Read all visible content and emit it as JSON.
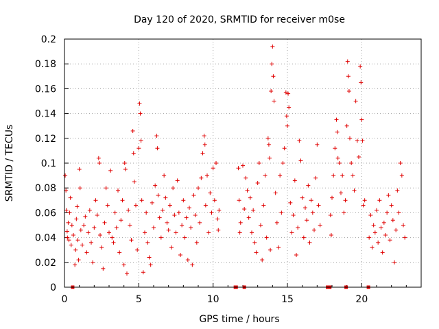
{
  "chart_data": {
    "type": "scatter",
    "title": "Day 120 of 2020, SRMTID for receiver m0se",
    "xlabel": "GPS time / hours",
    "ylabel": "SRMTID / TECUs",
    "xlim": [
      0,
      24
    ],
    "ylim": [
      0,
      0.2
    ],
    "grid": true,
    "marker": "plus",
    "colors": {
      "series": "#e00000",
      "grid": "#a0a0a0",
      "axis": "#000000"
    },
    "x_ticks": [
      {
        "value": 0,
        "label": "0"
      },
      {
        "value": 5,
        "label": "5"
      },
      {
        "value": 10,
        "label": "10"
      },
      {
        "value": 15,
        "label": "15"
      },
      {
        "value": 20,
        "label": "20"
      }
    ],
    "y_ticks": [
      {
        "value": 0,
        "label": "0"
      },
      {
        "value": 0.02,
        "label": "0.02"
      },
      {
        "value": 0.04,
        "label": "0.04"
      },
      {
        "value": 0.06,
        "label": "0.06"
      },
      {
        "value": 0.08,
        "label": "0.08"
      },
      {
        "value": 0.1,
        "label": "0.1"
      },
      {
        "value": 0.12,
        "label": "0.12"
      },
      {
        "value": 0.14,
        "label": "0.14"
      },
      {
        "value": 0.16,
        "label": "0.16"
      },
      {
        "value": 0.18,
        "label": "0.18"
      },
      {
        "value": 0.2,
        "label": "0.2"
      }
    ],
    "series": [
      {
        "name": "SRMTID",
        "points": [
          [
            0.05,
            0.09
          ],
          [
            0.1,
            0.078
          ],
          [
            0.12,
            0.062
          ],
          [
            0.18,
            0.045
          ],
          [
            0.2,
            0.04
          ],
          [
            0.25,
            0.052
          ],
          [
            0.3,
            0.038
          ],
          [
            0.35,
            0.06
          ],
          [
            0.4,
            0.072
          ],
          [
            0.45,
            0.034
          ],
          [
            0.5,
            0.05
          ],
          [
            0.6,
            0.042
          ],
          [
            0.7,
            0.018
          ],
          [
            0.75,
            0.03
          ],
          [
            0.8,
            0.055
          ],
          [
            0.85,
            0.065
          ],
          [
            0.9,
            0.038
          ],
          [
            0.95,
            0.022
          ],
          [
            1.0,
            0.095
          ],
          [
            1.05,
            0.08
          ],
          [
            1.1,
            0.046
          ],
          [
            1.2,
            0.034
          ],
          [
            1.3,
            0.05
          ],
          [
            1.4,
            0.057
          ],
          [
            1.5,
            0.028
          ],
          [
            1.6,
            0.044
          ],
          [
            1.7,
            0.062
          ],
          [
            1.8,
            0.036
          ],
          [
            1.9,
            0.02
          ],
          [
            2.0,
            0.048
          ],
          [
            2.1,
            0.07
          ],
          [
            2.2,
            0.058
          ],
          [
            2.3,
            0.104
          ],
          [
            2.35,
            0.1
          ],
          [
            2.4,
            0.042
          ],
          [
            2.5,
            0.032
          ],
          [
            2.6,
            0.015
          ],
          [
            2.7,
            0.052
          ],
          [
            2.8,
            0.08
          ],
          [
            2.9,
            0.066
          ],
          [
            3.0,
            0.044
          ],
          [
            3.1,
            0.094
          ],
          [
            3.2,
            0.04
          ],
          [
            3.3,
            0.036
          ],
          [
            3.4,
            0.06
          ],
          [
            3.5,
            0.048
          ],
          [
            3.6,
            0.078
          ],
          [
            3.7,
            0.028
          ],
          [
            3.8,
            0.054
          ],
          [
            3.9,
            0.07
          ],
          [
            4.0,
            0.018
          ],
          [
            4.05,
            0.1
          ],
          [
            4.1,
            0.095
          ],
          [
            4.2,
            0.011
          ],
          [
            4.3,
            0.062
          ],
          [
            4.4,
            0.05
          ],
          [
            4.5,
            0.038
          ],
          [
            4.6,
            0.126
          ],
          [
            4.65,
            0.108
          ],
          [
            4.7,
            0.085
          ],
          [
            4.8,
            0.066
          ],
          [
            4.9,
            0.03
          ],
          [
            5.0,
            0.112
          ],
          [
            5.05,
            0.148
          ],
          [
            5.1,
            0.14
          ],
          [
            5.15,
            0.118
          ],
          [
            5.2,
            0.07
          ],
          [
            5.3,
            0.012
          ],
          [
            5.4,
            0.044
          ],
          [
            5.5,
            0.06
          ],
          [
            5.6,
            0.036
          ],
          [
            5.7,
            0.024
          ],
          [
            5.8,
            0.018
          ],
          [
            5.9,
            0.068
          ],
          [
            6.0,
            0.048
          ],
          [
            6.1,
            0.082
          ],
          [
            6.2,
            0.122
          ],
          [
            6.25,
            0.112
          ],
          [
            6.3,
            0.074
          ],
          [
            6.4,
            0.056
          ],
          [
            6.5,
            0.04
          ],
          [
            6.6,
            0.062
          ],
          [
            6.7,
            0.09
          ],
          [
            6.8,
            0.072
          ],
          [
            6.9,
            0.052
          ],
          [
            7.0,
            0.046
          ],
          [
            7.1,
            0.066
          ],
          [
            7.2,
            0.032
          ],
          [
            7.3,
            0.08
          ],
          [
            7.4,
            0.058
          ],
          [
            7.5,
            0.044
          ],
          [
            7.6,
            0.086
          ],
          [
            7.7,
            0.06
          ],
          [
            7.8,
            0.026
          ],
          [
            7.9,
            0.05
          ],
          [
            8.0,
            0.07
          ],
          [
            8.1,
            0.04
          ],
          [
            8.2,
            0.056
          ],
          [
            8.3,
            0.022
          ],
          [
            8.4,
            0.064
          ],
          [
            8.5,
            0.048
          ],
          [
            8.6,
            0.018
          ],
          [
            8.7,
            0.074
          ],
          [
            8.8,
            0.058
          ],
          [
            8.9,
            0.036
          ],
          [
            9.0,
            0.08
          ],
          [
            9.1,
            0.052
          ],
          [
            9.2,
            0.088
          ],
          [
            9.3,
            0.108
          ],
          [
            9.4,
            0.122
          ],
          [
            9.45,
            0.115
          ],
          [
            9.5,
            0.066
          ],
          [
            9.6,
            0.09
          ],
          [
            9.7,
            0.044
          ],
          [
            9.8,
            0.076
          ],
          [
            9.9,
            0.06
          ],
          [
            10.0,
            0.096
          ],
          [
            10.1,
            0.07
          ],
          [
            10.2,
            0.1
          ],
          [
            10.3,
            0.055
          ],
          [
            10.35,
            0.046
          ],
          [
            10.4,
            0.062
          ],
          [
            11.7,
            0.096
          ],
          [
            11.75,
            0.07
          ],
          [
            11.8,
            0.044
          ],
          [
            11.85,
            0.052
          ],
          [
            12.0,
            0.098
          ],
          [
            12.1,
            0.063
          ],
          [
            12.2,
            0.088
          ],
          [
            12.3,
            0.078
          ],
          [
            12.4,
            0.056
          ],
          [
            12.5,
            0.072
          ],
          [
            12.6,
            0.044
          ],
          [
            12.7,
            0.062
          ],
          [
            12.8,
            0.036
          ],
          [
            12.9,
            0.028
          ],
          [
            13.0,
            0.084
          ],
          [
            13.1,
            0.1
          ],
          [
            13.2,
            0.05
          ],
          [
            13.3,
            0.022
          ],
          [
            13.4,
            0.066
          ],
          [
            13.5,
            0.09
          ],
          [
            13.6,
            0.04
          ],
          [
            13.7,
            0.12
          ],
          [
            13.75,
            0.115
          ],
          [
            13.8,
            0.104
          ],
          [
            13.85,
            0.03
          ],
          [
            13.9,
            0.158
          ],
          [
            13.95,
            0.18
          ],
          [
            14.0,
            0.194
          ],
          [
            14.05,
            0.17
          ],
          [
            14.1,
            0.15
          ],
          [
            14.2,
            0.076
          ],
          [
            14.3,
            0.052
          ],
          [
            14.4,
            0.032
          ],
          [
            14.5,
            0.09
          ],
          [
            14.6,
            0.06
          ],
          [
            14.7,
            0.1
          ],
          [
            14.8,
            0.112
          ],
          [
            14.9,
            0.157
          ],
          [
            14.95,
            0.138
          ],
          [
            15.0,
            0.13
          ],
          [
            15.05,
            0.156
          ],
          [
            15.1,
            0.145
          ],
          [
            15.2,
            0.068
          ],
          [
            15.3,
            0.044
          ],
          [
            15.4,
            0.058
          ],
          [
            15.5,
            0.086
          ],
          [
            15.6,
            0.026
          ],
          [
            15.7,
            0.048
          ],
          [
            15.8,
            0.118
          ],
          [
            15.9,
            0.102
          ],
          [
            16.0,
            0.072
          ],
          [
            16.1,
            0.04
          ],
          [
            16.2,
            0.064
          ],
          [
            16.3,
            0.054
          ],
          [
            16.4,
            0.082
          ],
          [
            16.5,
            0.036
          ],
          [
            16.6,
            0.07
          ],
          [
            16.7,
            0.06
          ],
          [
            16.8,
            0.046
          ],
          [
            16.9,
            0.088
          ],
          [
            17.0,
            0.115
          ],
          [
            17.1,
            0.066
          ],
          [
            17.2,
            0.05
          ],
          [
            17.9,
            0.058
          ],
          [
            17.95,
            0.042
          ],
          [
            18.0,
            0.072
          ],
          [
            18.1,
            0.09
          ],
          [
            18.2,
            0.112
          ],
          [
            18.3,
            0.135
          ],
          [
            18.35,
            0.125
          ],
          [
            18.4,
            0.104
          ],
          [
            18.5,
            0.1
          ],
          [
            18.6,
            0.076
          ],
          [
            18.7,
            0.09
          ],
          [
            18.8,
            0.06
          ],
          [
            18.9,
            0.07
          ],
          [
            19.0,
            0.13
          ],
          [
            19.05,
            0.182
          ],
          [
            19.1,
            0.17
          ],
          [
            19.15,
            0.158
          ],
          [
            19.2,
            0.12
          ],
          [
            19.3,
            0.1
          ],
          [
            19.4,
            0.09
          ],
          [
            19.5,
            0.078
          ],
          [
            19.6,
            0.15
          ],
          [
            19.7,
            0.118
          ],
          [
            19.8,
            0.105
          ],
          [
            19.9,
            0.178
          ],
          [
            19.95,
            0.165
          ],
          [
            20.0,
            0.135
          ],
          [
            20.05,
            0.118
          ],
          [
            20.1,
            0.066
          ],
          [
            20.2,
            0.07
          ],
          [
            20.5,
            0.04
          ],
          [
            20.6,
            0.058
          ],
          [
            20.7,
            0.032
          ],
          [
            20.8,
            0.05
          ],
          [
            20.9,
            0.044
          ],
          [
            21.0,
            0.062
          ],
          [
            21.1,
            0.036
          ],
          [
            21.2,
            0.07
          ],
          [
            21.3,
            0.048
          ],
          [
            21.4,
            0.028
          ],
          [
            21.5,
            0.052
          ],
          [
            21.6,
            0.042
          ],
          [
            21.7,
            0.06
          ],
          [
            21.8,
            0.074
          ],
          [
            21.9,
            0.038
          ],
          [
            22.0,
            0.066
          ],
          [
            22.1,
            0.054
          ],
          [
            22.2,
            0.02
          ],
          [
            22.3,
            0.046
          ],
          [
            22.4,
            0.078
          ],
          [
            22.5,
            0.06
          ],
          [
            22.6,
            0.1
          ],
          [
            22.7,
            0.09
          ],
          [
            22.8,
            0.05
          ],
          [
            22.9,
            0.04
          ]
        ]
      },
      {
        "name": "data gaps",
        "points": [
          [
            0.55,
            0
          ],
          [
            11.5,
            0
          ],
          [
            11.55,
            0
          ],
          [
            12.1,
            0
          ],
          [
            17.7,
            0
          ],
          [
            17.85,
            0
          ],
          [
            18.95,
            0
          ],
          [
            20.45,
            0
          ]
        ]
      }
    ]
  }
}
